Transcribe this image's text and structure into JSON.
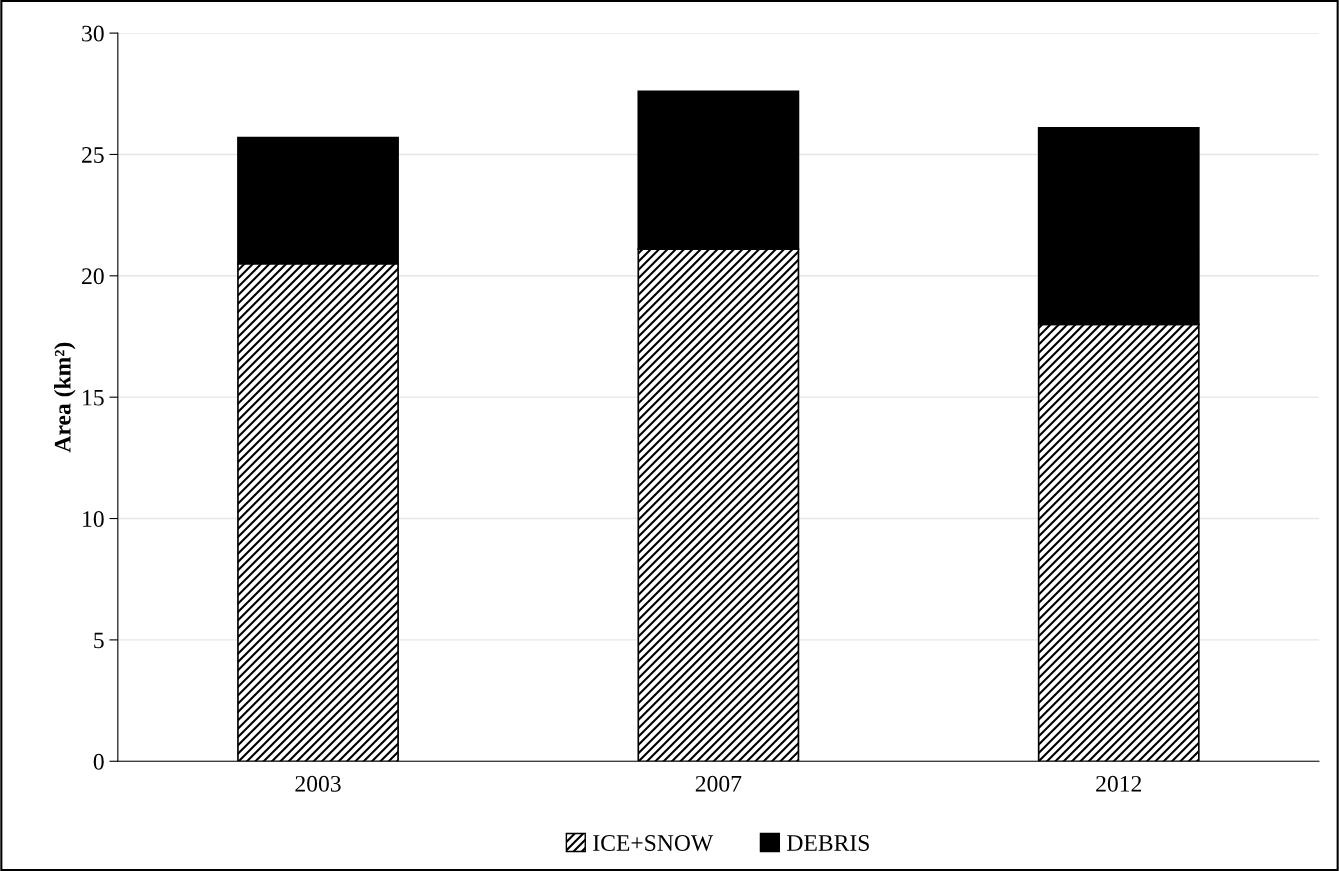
{
  "chart_data": {
    "type": "bar",
    "stacked": true,
    "ylabel": "Area (km²)",
    "categories": [
      "2003",
      "2007",
      "2012"
    ],
    "series": [
      {
        "name": "ICE+SNOW",
        "color": "#000000",
        "values": [
          20.5,
          21.1,
          18.0
        ]
      },
      {
        "name": "DEBRIS",
        "color": "#000000",
        "values": [
          5.2,
          6.5,
          8.1
        ]
      }
    ],
    "ylim": [
      0,
      30
    ],
    "yticks": [
      0,
      5,
      10,
      15,
      20,
      25,
      30
    ],
    "grid": "y",
    "legend": "bottom"
  }
}
